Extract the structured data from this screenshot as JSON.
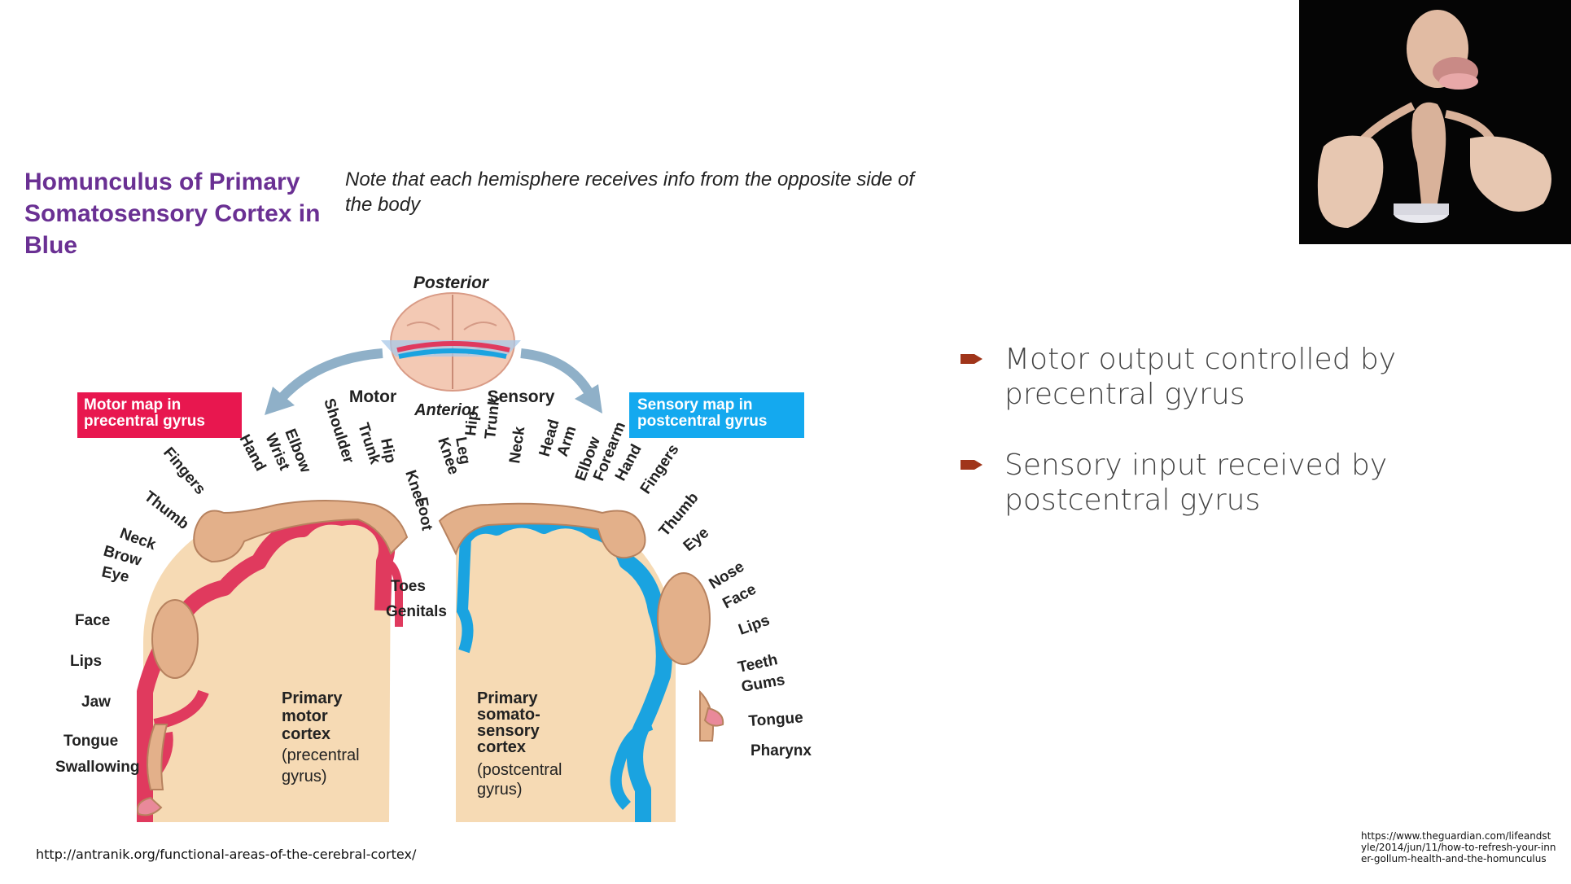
{
  "slide": {
    "title": "Homunculus of Primary Somatosensory Cortex in Blue",
    "note": "Note that each hemisphere receives info from the opposite side of the body",
    "bullets": [
      "Motor output controlled by precentral gyrus",
      "Sensory input received by postcentral gyrus"
    ],
    "source_left": "http://antranik.org/functional-areas-of-the-cerebral-cortex/",
    "source_right": "https://www.theguardian.com/lifeandstyle/2014/jun/11/how-to-refresh-your-inner-gollum-health-and-the-homunculus",
    "accent": "#a0351a",
    "title_color": "#6a3093"
  },
  "diagram": {
    "posterior": "Posterior",
    "anterior": "Anterior",
    "motor": "Motor",
    "sensory": "Sensory",
    "motor_box": [
      "Motor map in",
      "precentral gyrus"
    ],
    "sensory_box": [
      "Sensory map in",
      "postcentral gyrus"
    ],
    "motor_cortex_label": [
      "Primary",
      "motor",
      "cortex",
      "(precentral",
      "gyrus)"
    ],
    "sensory_cortex_label": [
      "Primary",
      "somato-",
      "sensory",
      "cortex",
      "(postcentral",
      "gyrus)"
    ],
    "motor_parts": [
      "Toes",
      "Genitals",
      "Foot",
      "Knee",
      "Hip",
      "Trunk",
      "Shoulder",
      "Elbow",
      "Wrist",
      "Hand",
      "Fingers",
      "Thumb",
      "Neck",
      "Brow",
      "Eye",
      "Face",
      "Lips",
      "Jaw",
      "Tongue",
      "Swallowing"
    ],
    "sensory_parts": [
      "Knee",
      "Leg",
      "Hip",
      "Trunk",
      "Neck",
      "Head",
      "Arm",
      "Elbow",
      "Forearm",
      "Hand",
      "Fingers",
      "Thumb",
      "Eye",
      "Nose",
      "Face",
      "Lips",
      "Teeth",
      "Gums",
      "Tongue",
      "Pharynx"
    ],
    "colors": {
      "motor": "#e03a5e",
      "sensory": "#1aa3e0",
      "tissue": "#f7dcb8",
      "skin": "#e3b08a"
    }
  }
}
